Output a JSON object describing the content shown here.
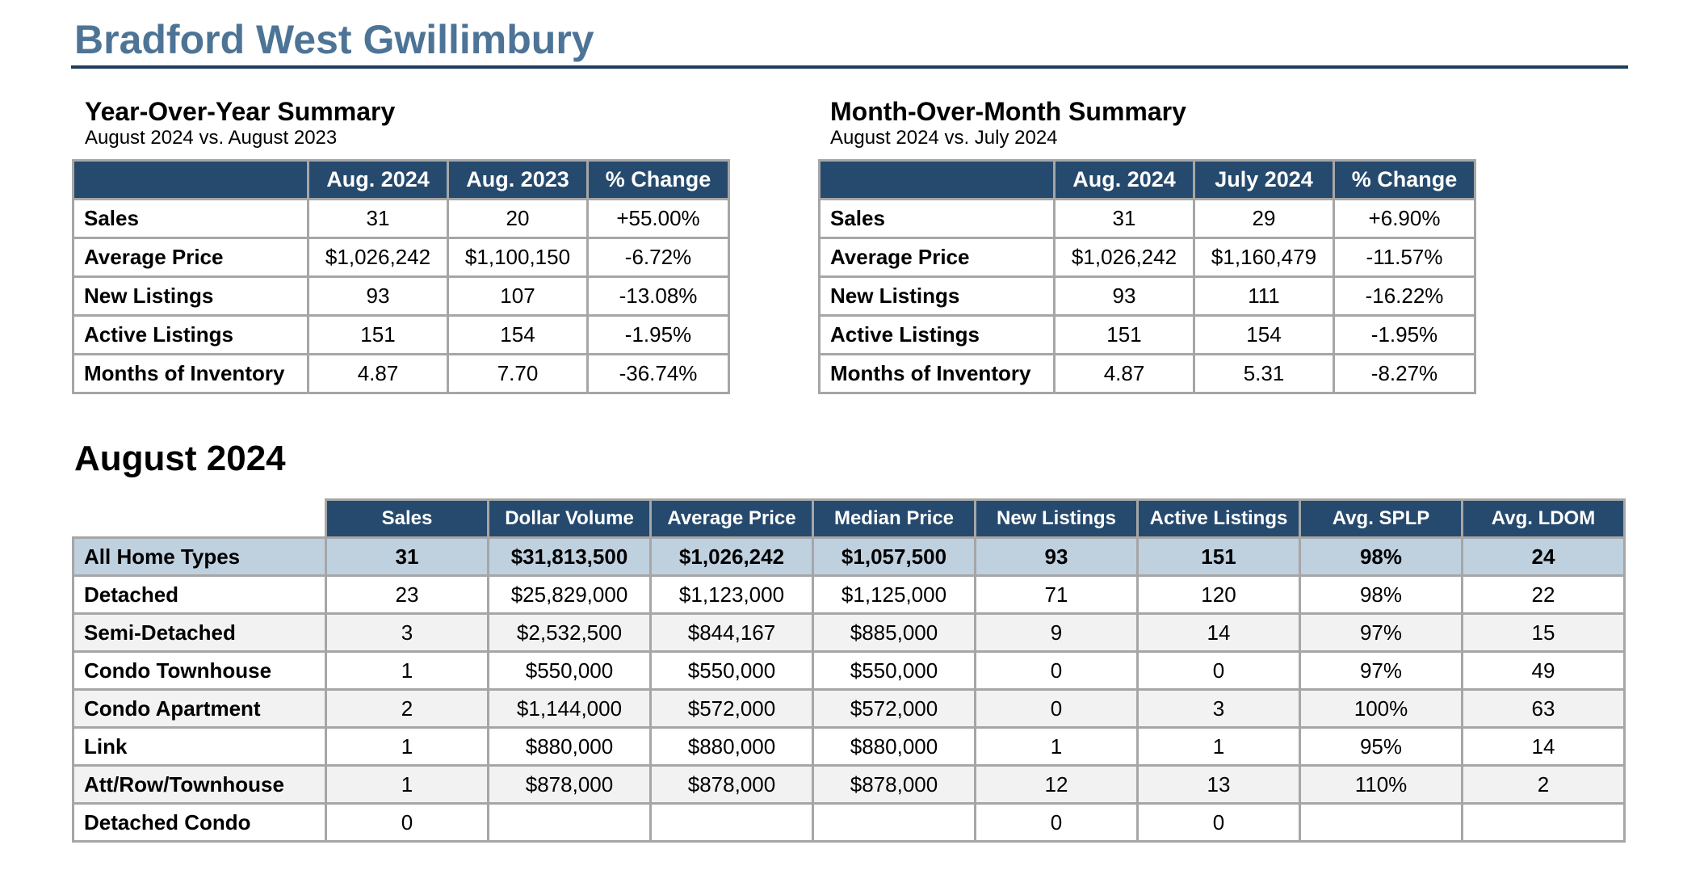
{
  "page_title": "Bradford West Gwillimbury",
  "yoy": {
    "heading": "Year-Over-Year Summary",
    "subheading": "August 2024 vs. August 2023",
    "columns": [
      "Aug. 2024",
      "Aug. 2023",
      "% Change"
    ],
    "rows": [
      {
        "label": "Sales",
        "values": [
          "31",
          "20",
          "+55.00%"
        ]
      },
      {
        "label": "Average Price",
        "values": [
          "$1,026,242",
          "$1,100,150",
          "-6.72%"
        ]
      },
      {
        "label": "New Listings",
        "values": [
          "93",
          "107",
          "-13.08%"
        ]
      },
      {
        "label": "Active Listings",
        "values": [
          "151",
          "154",
          "-1.95%"
        ]
      },
      {
        "label": "Months of Inventory",
        "values": [
          "4.87",
          "7.70",
          "-36.74%"
        ]
      }
    ]
  },
  "mom": {
    "heading": "Month-Over-Month Summary",
    "subheading": "August 2024 vs. July 2024",
    "columns": [
      "Aug. 2024",
      "July 2024",
      "% Change"
    ],
    "rows": [
      {
        "label": "Sales",
        "values": [
          "31",
          "29",
          "+6.90%"
        ]
      },
      {
        "label": "Average Price",
        "values": [
          "$1,026,242",
          "$1,160,479",
          "-11.57%"
        ]
      },
      {
        "label": "New Listings",
        "values": [
          "93",
          "111",
          "-16.22%"
        ]
      },
      {
        "label": "Active Listings",
        "values": [
          "151",
          "154",
          "-1.95%"
        ]
      },
      {
        "label": "Months of Inventory",
        "values": [
          "4.87",
          "5.31",
          "-8.27%"
        ]
      }
    ]
  },
  "monthly": {
    "heading": "August 2024",
    "columns": [
      "Sales",
      "Dollar Volume",
      "Average Price",
      "Median Price",
      "New Listings",
      "Active Listings",
      "Avg. SPLP",
      "Avg. LDOM"
    ],
    "rows": [
      {
        "label": "All Home Types",
        "values": [
          "31",
          "$31,813,500",
          "$1,026,242",
          "$1,057,500",
          "93",
          "151",
          "98%",
          "24"
        ]
      },
      {
        "label": "Detached",
        "values": [
          "23",
          "$25,829,000",
          "$1,123,000",
          "$1,125,000",
          "71",
          "120",
          "98%",
          "22"
        ]
      },
      {
        "label": "Semi-Detached",
        "values": [
          "3",
          "$2,532,500",
          "$844,167",
          "$885,000",
          "9",
          "14",
          "97%",
          "15"
        ]
      },
      {
        "label": "Condo Townhouse",
        "values": [
          "1",
          "$550,000",
          "$550,000",
          "$550,000",
          "0",
          "0",
          "97%",
          "49"
        ]
      },
      {
        "label": "Condo Apartment",
        "values": [
          "2",
          "$1,144,000",
          "$572,000",
          "$572,000",
          "0",
          "3",
          "100%",
          "63"
        ]
      },
      {
        "label": "Link",
        "values": [
          "1",
          "$880,000",
          "$880,000",
          "$880,000",
          "1",
          "1",
          "95%",
          "14"
        ]
      },
      {
        "label": "Att/Row/Townhouse",
        "values": [
          "1",
          "$878,000",
          "$878,000",
          "$878,000",
          "12",
          "13",
          "110%",
          "2"
        ]
      },
      {
        "label": "Detached Condo",
        "values": [
          "0",
          "",
          "",
          "",
          "0",
          "0",
          "",
          ""
        ]
      }
    ]
  },
  "colors": {
    "title": "#4d7496",
    "header_fill": "#264a6e",
    "highlight_row": "#bfd0df",
    "alt_row": "#f2f2f2",
    "rule": "#1f3d5c"
  }
}
